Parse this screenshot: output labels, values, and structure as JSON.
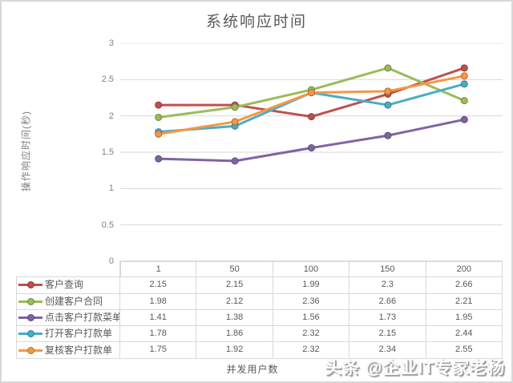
{
  "page": {
    "watermark": "头条 @企业IT专家老杨"
  },
  "chart_data": {
    "type": "line",
    "title": "系统响应时间",
    "xlabel": "并发用户数",
    "ylabel": "操作响应时间(秒)",
    "categories": [
      "1",
      "50",
      "100",
      "150",
      "200"
    ],
    "ylim": [
      0,
      3
    ],
    "yticks": [
      0,
      0.5,
      1,
      1.5,
      2,
      2.5,
      3
    ],
    "grid": true,
    "gridline_color": "#d9d9d9",
    "axis_line_color": "#c6c6c6",
    "legend_position": "data-table-left",
    "series": [
      {
        "name": "客户查询",
        "color": "#C0504D",
        "values": [
          2.15,
          2.15,
          1.99,
          2.3,
          2.66
        ]
      },
      {
        "name": "创建客户合同",
        "color": "#9BBB59",
        "values": [
          1.98,
          2.12,
          2.36,
          2.66,
          2.21
        ]
      },
      {
        "name": "点击客户打款菜单",
        "color": "#8064A2",
        "values": [
          1.41,
          1.38,
          1.56,
          1.73,
          1.95
        ]
      },
      {
        "name": "打开客户打款单",
        "color": "#4BACC6",
        "values": [
          1.78,
          1.86,
          2.32,
          2.15,
          2.44
        ]
      },
      {
        "name": "复核客户打款单",
        "color": "#F79646",
        "values": [
          1.75,
          1.92,
          2.32,
          2.34,
          2.55
        ]
      }
    ]
  }
}
